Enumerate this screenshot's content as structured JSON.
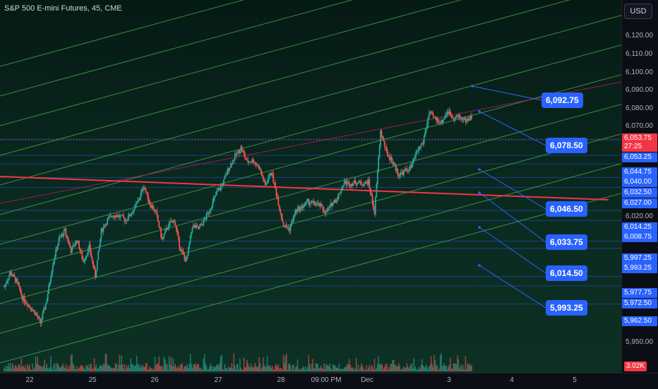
{
  "header": {
    "title": "S&P 500 E-mini Futures, 45, CME",
    "currency_button": "USD"
  },
  "price_axis": {
    "ticks": [
      "6,120.00",
      "6,110.00",
      "6,100.00",
      "6,090.00",
      "6,080.00",
      "6,070.00",
      "6,020.00",
      "5,950.00"
    ],
    "level_badges": [
      "6,053.25",
      "6,044.75",
      "6,040.00",
      "6,032.50",
      "6,027.00",
      "6,014.25",
      "6,008.75",
      "5,997.25",
      "5,993.25",
      "5,977.75",
      "5,972.50",
      "5,962.50"
    ],
    "current_price": "6,053.75",
    "countdown": "27:25",
    "volume_badge": "3.02K"
  },
  "annotations": [
    "6,092.75",
    "6,078.50",
    "6,046.50",
    "6,033.75",
    "6,014.50",
    "5,993.25"
  ],
  "time_axis": [
    "22",
    "25",
    "26",
    "27",
    "28",
    "09:00 PM",
    "Dec",
    "3",
    "4",
    "5"
  ],
  "colors": {
    "bull": "#26a69a",
    "bear": "#ef5350",
    "channel_line": "#4caf50",
    "resistance_line": "#f23645",
    "label_blue": "#2962ff"
  },
  "chart_data": {
    "type": "candlestick",
    "title": "S&P 500 E-mini Futures, 45, CME",
    "ylim": [
      5946,
      6130
    ],
    "close_path": [
      5972,
      5980,
      5975,
      5966,
      5962,
      5958,
      5952,
      5965,
      5985,
      5998,
      6003,
      5992,
      5998,
      5986,
      5994,
      5978,
      6003,
      6009,
      6012,
      6011,
      6009,
      6013,
      6019,
      6028,
      6018,
      6013,
      5998,
      6006,
      6009,
      5993,
      5986,
      6006,
      6004,
      6009,
      6016,
      6024,
      6029,
      6038,
      6044,
      6049,
      6041,
      6042,
      6038,
      6028,
      6036,
      6021,
      6006,
      6004,
      6014,
      6016,
      6019,
      6018,
      6017,
      6013,
      6018,
      6022,
      6030,
      6029,
      6030,
      6029,
      6030,
      6013,
      6058,
      6046,
      6041,
      6034,
      6036,
      6038,
      6047,
      6052,
      6068,
      6065,
      6063,
      6069,
      6066,
      6066,
      6064,
      6066
    ],
    "annotation_levels": [
      6092.75,
      6078.5,
      6046.5,
      6033.75,
      6014.5,
      5993.25
    ],
    "current": 6053.75
  }
}
